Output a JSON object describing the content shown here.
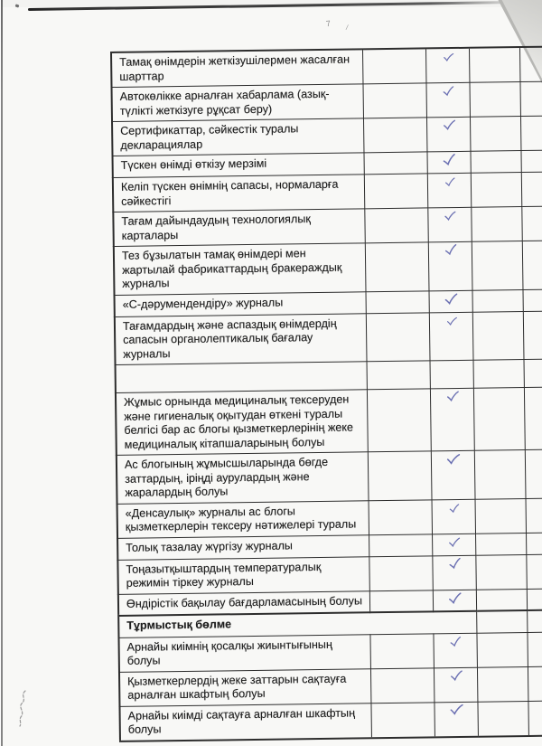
{
  "document": {
    "kind": "scanned-checklist-page",
    "language": "kk"
  },
  "colors": {
    "ink": "#6b70b2",
    "line": "#2d2d2d",
    "paper": "#f8f8f6",
    "text": "#1e1e1e"
  },
  "artifacts": {
    "top_marks": [
      "7",
      "/"
    ]
  },
  "table": {
    "columns": [
      "item",
      "col2",
      "checkmark",
      "col4",
      "col5"
    ],
    "rows": [
      {
        "label": "Тамақ өнімдерін жеткізушілермен жасалған шарттар",
        "type": "item",
        "checked": true
      },
      {
        "label": "Автокөлікке арналған хабарлама (азық-түлікті жеткізуге рұқсат беру)",
        "type": "item",
        "checked": true
      },
      {
        "label": "Сертификаттар, сәйкестік туралы декларациялар",
        "type": "item",
        "checked": true
      },
      {
        "label": "Түскен өнімді өткізу мерзімі",
        "type": "item",
        "checked": true
      },
      {
        "label": "Келіп түскен өнімнің сапасы, нормаларға сәйкестігі",
        "type": "item",
        "checked": true
      },
      {
        "label": "Тағам дайындаудың технологиялық карталары",
        "type": "item",
        "checked": true
      },
      {
        "label": "Тез бұзылатын тамақ өнімдері мен жартылай фабрикаттардың бракераждық журналы",
        "type": "item",
        "checked": true
      },
      {
        "label": "«С-дәрумендендіру» журналы",
        "type": "item",
        "checked": true
      },
      {
        "label": "Тағамдардың және аспаздық өнімдердің сапасын органолептикалық бағалау журналы",
        "type": "item",
        "checked": true
      },
      {
        "label": "",
        "type": "spacer",
        "checked": false
      },
      {
        "label": "Жұмыс орнында медициналық тексеруден және гигиеналық оқытудан өткені туралы белгісі бар ас блогы қызметкерлерінің жеке медициналық кітапшаларының болуы",
        "type": "item",
        "checked": true
      },
      {
        "label": "Ас блогының жұмысшыларында бөгде заттардың, іріңді аурулардың және жаралардың болуы",
        "type": "item",
        "checked": true
      },
      {
        "label": "«Денсаулық» журналы ас блогы қызметкерлерін тексеру нәтижелері туралы",
        "type": "item",
        "checked": true
      },
      {
        "label": "Толық тазалау жүргізу журналы",
        "type": "item",
        "checked": true
      },
      {
        "label": "Тоңазытқыштардың температуралық режимін тіркеу журналы",
        "type": "item",
        "checked": true
      },
      {
        "label": "Өндірістік бақылау бағдарламасының болуы",
        "type": "item",
        "checked": true
      },
      {
        "label": "Тұрмыстық бөлме",
        "type": "section",
        "checked": false
      },
      {
        "label": "Арнайы киімнің қосалқы жиынтығының болуы",
        "type": "item",
        "checked": true
      },
      {
        "label": "Қызметкерлердің жеке заттарын сақтауға арналған шкафтың болуы",
        "type": "item",
        "checked": true
      },
      {
        "label": "Арнайы киімді сақтауға арналған шкафтың болуы",
        "type": "item",
        "checked": true,
        "check_align": "top"
      }
    ]
  }
}
